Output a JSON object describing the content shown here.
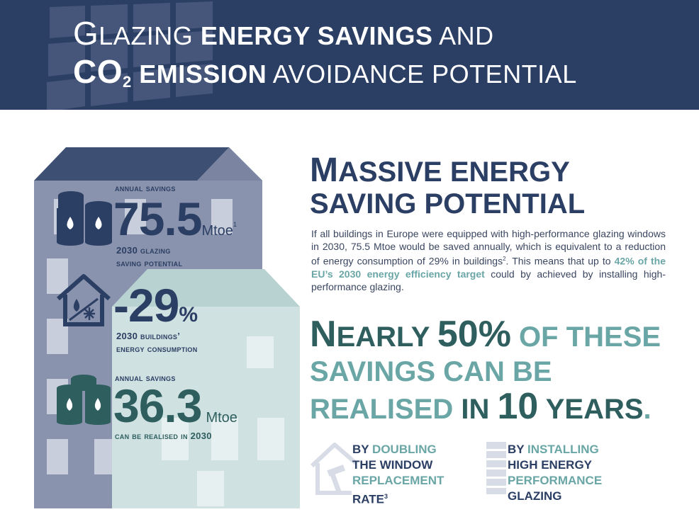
{
  "header": {
    "title_g": "G",
    "title_l1_rest_thin": "LAZING ",
    "title_l1_bold": "ENERGY SAVINGS",
    "title_l1_end": " AND",
    "title_co": "CO",
    "title_sub": "2",
    "title_l2_bold": " EMISSION",
    "title_l2_end": " AVOIDANCE POTENTIAL"
  },
  "stats": {
    "annual1_label": "Annual savings",
    "annual1_value": "75.5",
    "annual1_unit": "Mtoe",
    "annual1_ref": "1",
    "annual1_sub1": "2030 glazing",
    "annual1_sub2": "saving potential",
    "reduction_value": "-29",
    "reduction_unit": "%",
    "reduction_sub1": "2030 buildings’",
    "reduction_sub2": "energy consumption",
    "annual2_label": "Annual savings",
    "annual2_value": "36.3",
    "annual2_unit": "Mtoe",
    "annual2_sub": "can be realised in 2030"
  },
  "right": {
    "title_m": "M",
    "title_line1_rest": "ASSIVE ENERGY",
    "title_line2": "SAVING POTENTIAL",
    "para_part1": "If all buildings in Europe were equipped with high-performance glazing windows in 2030, 75.5 Mtoe would be saved annually, which is equivalent to a reduction of energy consumption of 29% in buildings",
    "para_ref1": "2",
    "para_part2": ". This means that up to ",
    "para_highlight": "42% of the EU’s 2030 energy efficiency target",
    "para_part3": " could by achieved by installing high-performance glazing.",
    "claim_n": "N",
    "claim_early": "EARLY ",
    "claim_50": "50%",
    "claim_rest1": " OF THESE",
    "claim_line2": "SAVINGS CAN BE",
    "claim_realised": "REALISED ",
    "claim_in": "IN ",
    "claim_10": "10",
    "claim_years": " YEARS",
    "claim_dot": "."
  },
  "methods": {
    "m1_by": "BY ",
    "m1_doubling": "DOUBLING",
    "m1_line2": "THE WINDOW",
    "m1_line3": "REPLACEMENT",
    "m1_line4": "RATE",
    "m1_ref": "3",
    "m2_by": "BY ",
    "m2_installing": "INSTALLING",
    "m2_line2": "HIGH ENERGY",
    "m2_line3": "PERFORMANCE",
    "m2_line4": "GLAZING"
  },
  "colors": {
    "navy": "#2b3e63",
    "teal": "#6aa6a6",
    "dark_teal": "#2f5e5e",
    "building_back": "#8a93ad",
    "building_front": "#cfe1e1"
  },
  "icons": [
    "oil-barrels-icon",
    "house-energy-icon",
    "oil-barrels-icon",
    "house-hammer-icon",
    "glazing-panes-icon"
  ]
}
